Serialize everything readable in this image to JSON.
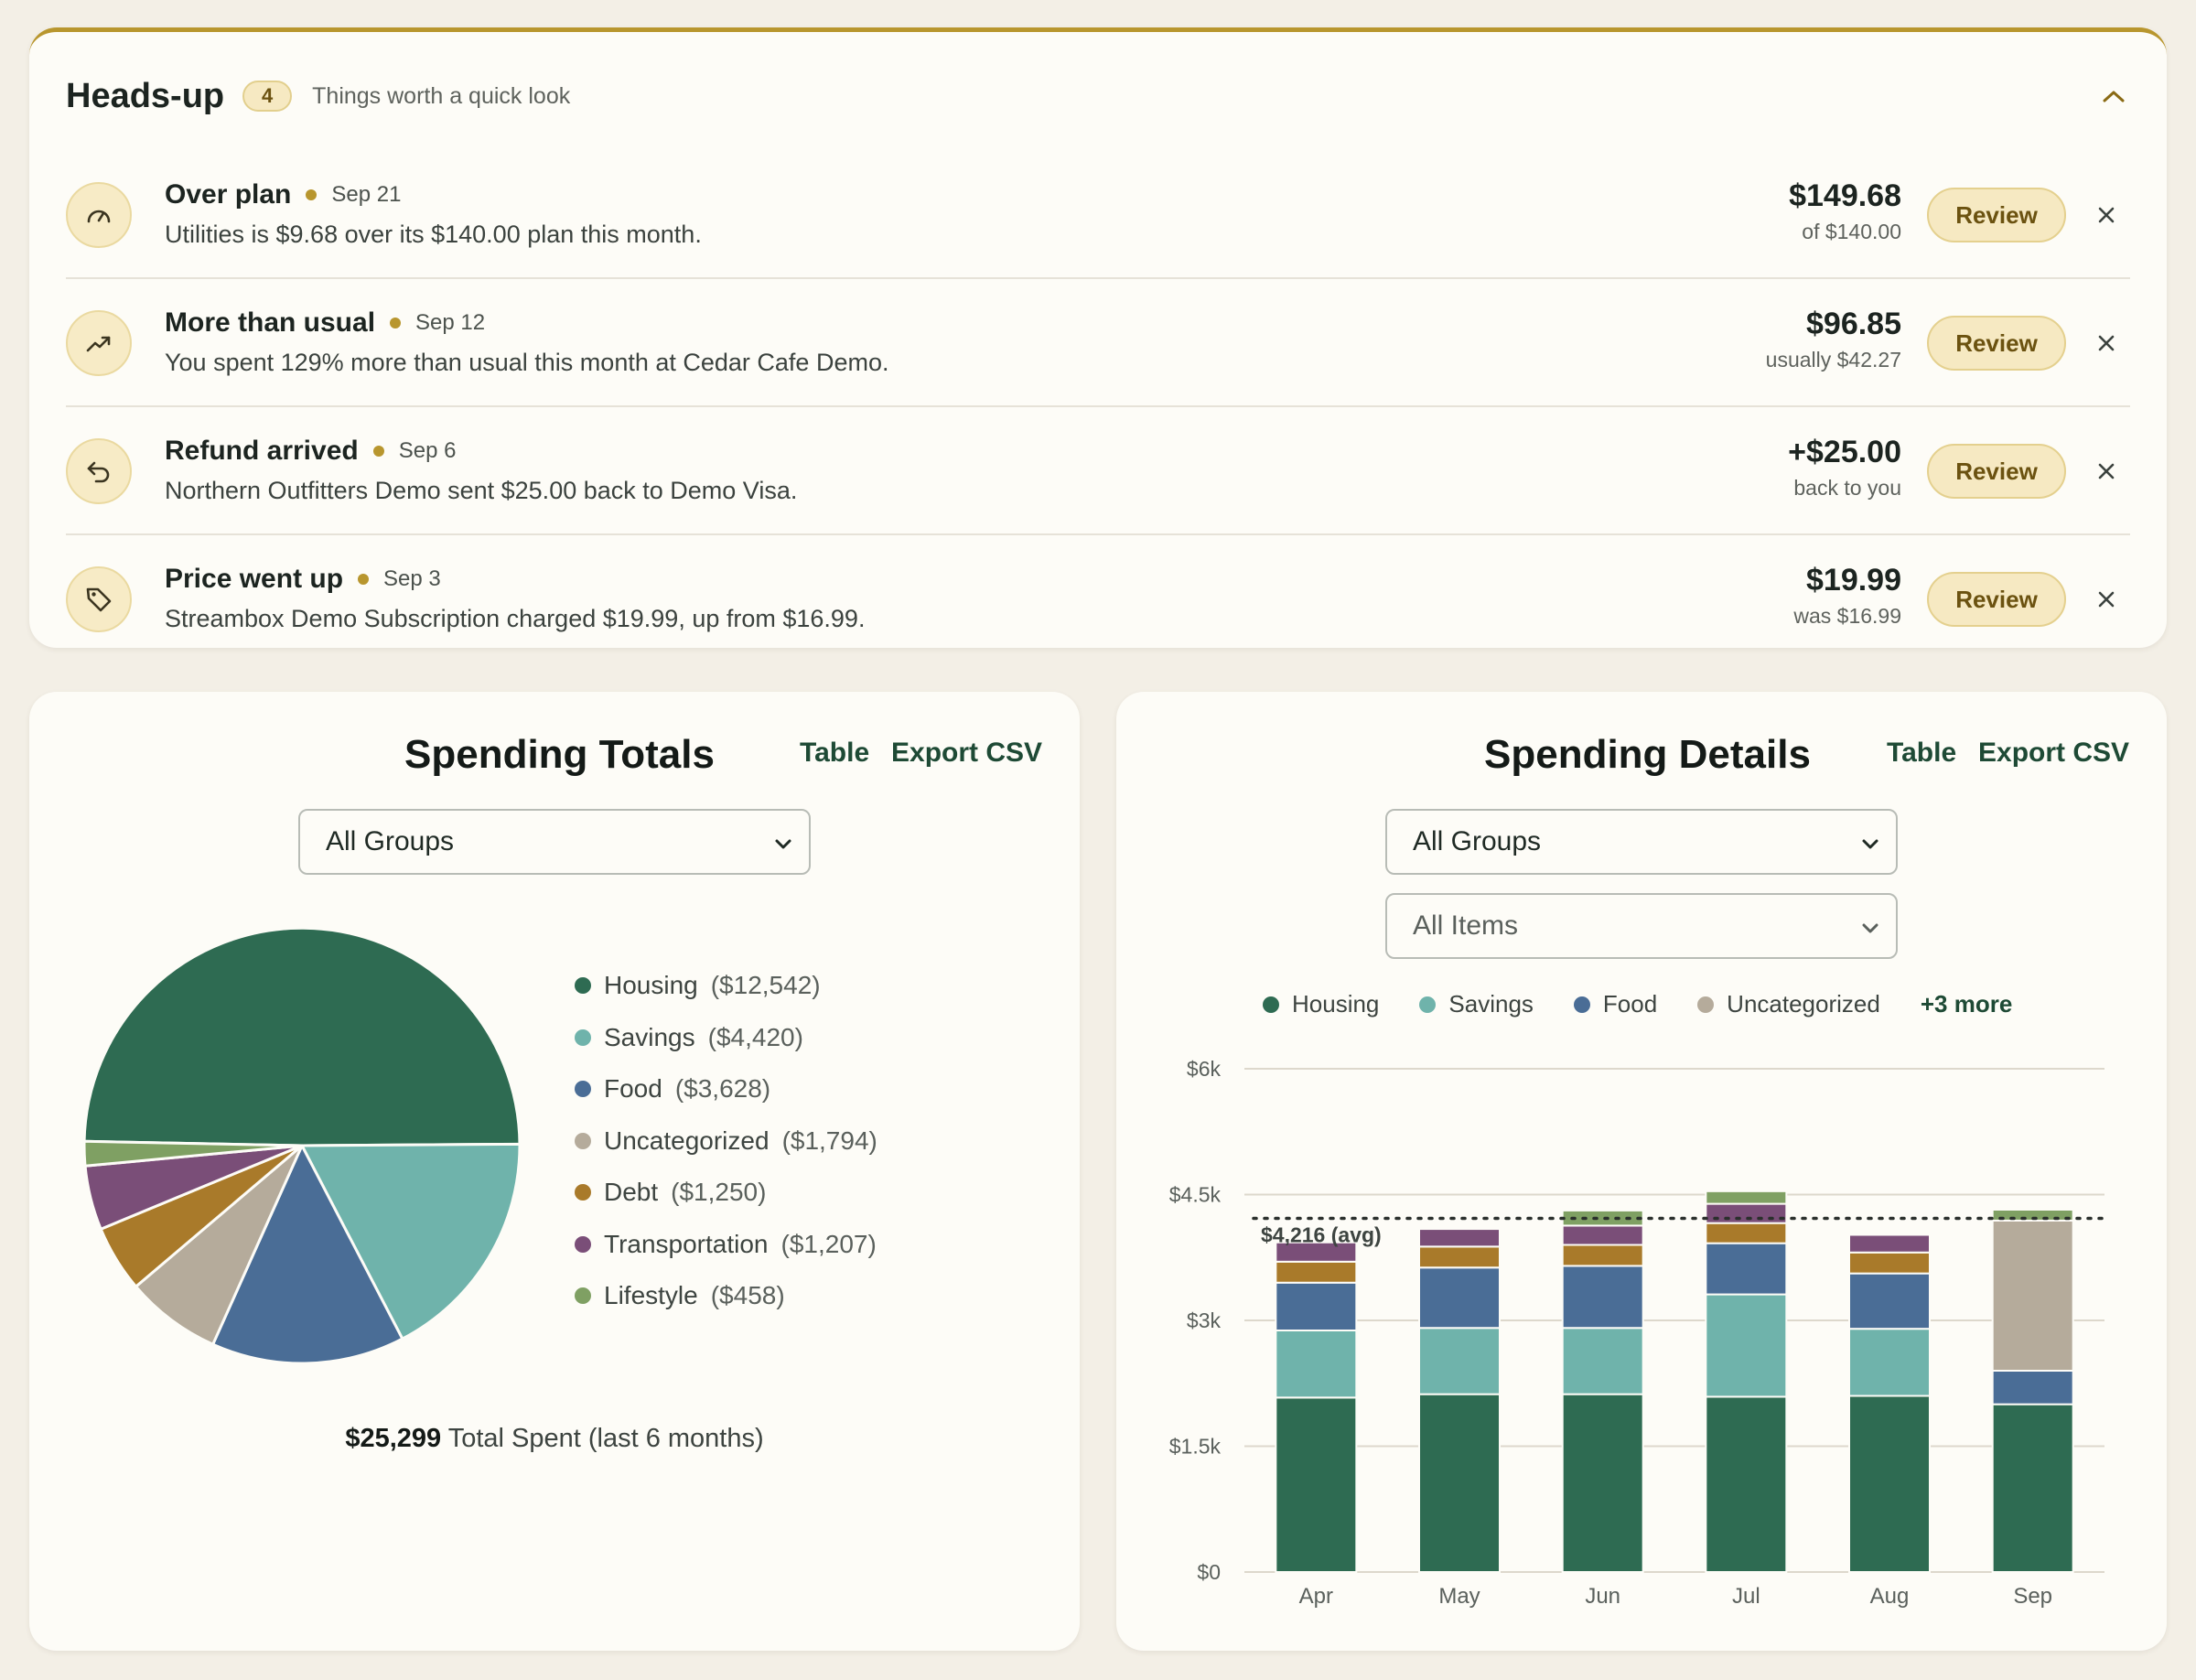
{
  "headsup": {
    "title": "Heads-up",
    "count": "4",
    "subtitle": "Things worth a quick look",
    "items": [
      {
        "icon": "gauge-icon",
        "title": "Over plan",
        "date": "Sep 21",
        "desc": "Utilities is $9.68 over its $140.00 plan this month.",
        "amount": "$149.68",
        "amount_sub": "of $140.00",
        "action": "Review"
      },
      {
        "icon": "trending-up-icon",
        "title": "More than usual",
        "date": "Sep 12",
        "desc": "You spent 129% more than usual this month at Cedar Cafe Demo.",
        "amount": "$96.85",
        "amount_sub": "usually $42.27",
        "action": "Review"
      },
      {
        "icon": "undo-arrow-icon",
        "title": "Refund arrived",
        "date": "Sep 6",
        "desc": "Northern Outfitters Demo sent $25.00 back to Demo Visa.",
        "amount": "+$25.00",
        "amount_sub": "back to you",
        "action": "Review"
      },
      {
        "icon": "price-tag-icon",
        "title": "Price went up",
        "date": "Sep 3",
        "desc": "Streambox Demo Subscription charged $19.99, up from $16.99.",
        "amount": "$19.99",
        "amount_sub": "was $16.99",
        "action": "Review"
      }
    ]
  },
  "totals": {
    "title": "Spending Totals",
    "table_link": "Table",
    "export_link": "Export CSV",
    "group_select": "All Groups",
    "total_amount": "$25,299",
    "total_label": "Total Spent (last 6 months)"
  },
  "details": {
    "title": "Spending Details",
    "table_link": "Table",
    "export_link": "Export CSV",
    "group_select": "All Groups",
    "item_select": "All Items",
    "more_link": "+3 more",
    "avg_label": "$4,216 (avg)"
  },
  "colors": {
    "Housing": "#2e6b52",
    "Savings": "#6fb3ab",
    "Food": "#4a6d96",
    "Uncategorized": "#b5ab9b",
    "Debt": "#a97a2a",
    "Transportation": "#7a4e78",
    "Lifestyle": "#7fa063"
  },
  "chart_data": [
    {
      "type": "pie",
      "title": "Spending Totals",
      "labels": [
        "Housing",
        "Savings",
        "Food",
        "Uncategorized",
        "Debt",
        "Transportation",
        "Lifestyle"
      ],
      "value_labels": [
        "($12,542)",
        "($4,420)",
        "($3,628)",
        "($1,794)",
        "($1,250)",
        "($1,207)",
        "($458)"
      ],
      "values": [
        12542,
        4420,
        3628,
        1794,
        1250,
        1207,
        458
      ]
    },
    {
      "type": "bar",
      "stacked": true,
      "title": "Spending Details",
      "categories": [
        "Apr",
        "May",
        "Jun",
        "Jul",
        "Aug",
        "Sep"
      ],
      "ylim": [
        0,
        6000
      ],
      "yticks": [
        "$0",
        "$1.5k",
        "$3k",
        "$4.5k",
        "$6k"
      ],
      "ytick_values": [
        0,
        1500,
        3000,
        4500,
        6000
      ],
      "average": 4216,
      "series": [
        {
          "name": "Housing",
          "values": [
            2080,
            2120,
            2120,
            2090,
            2100,
            2000
          ]
        },
        {
          "name": "Savings",
          "values": [
            800,
            790,
            790,
            1220,
            800,
            0
          ]
        },
        {
          "name": "Food",
          "values": [
            570,
            720,
            740,
            610,
            660,
            400
          ]
        },
        {
          "name": "Uncategorized",
          "values": [
            0,
            0,
            0,
            0,
            0,
            1790
          ]
        },
        {
          "name": "Debt",
          "values": [
            250,
            250,
            250,
            240,
            250,
            0
          ]
        },
        {
          "name": "Transportation",
          "values": [
            230,
            210,
            230,
            230,
            210,
            0
          ]
        },
        {
          "name": "Lifestyle",
          "values": [
            0,
            0,
            180,
            150,
            0,
            130
          ]
        }
      ]
    }
  ]
}
